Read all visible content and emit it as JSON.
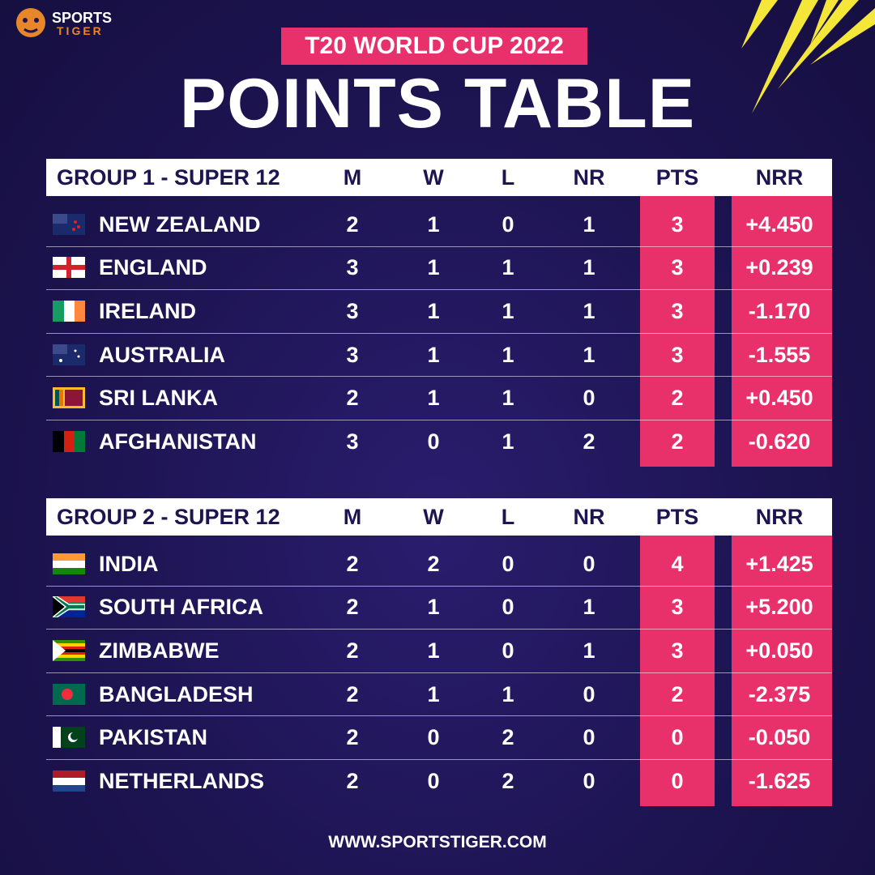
{
  "logo": {
    "top": "SPORTS",
    "bottom": "TIGER"
  },
  "badge": "T20 WORLD CUP 2022",
  "title": "POINTS TABLE",
  "groups": [
    {
      "header": [
        "GROUP 1 - SUPER 12",
        "M",
        "W",
        "L",
        "NR",
        "PTS",
        "NRR"
      ],
      "rows": [
        [
          "NEW ZEALAND",
          2,
          1,
          0,
          1,
          3,
          "+4.450"
        ],
        [
          "ENGLAND",
          3,
          1,
          1,
          1,
          3,
          "+0.239"
        ],
        [
          "IRELAND",
          3,
          1,
          1,
          1,
          3,
          "-1.170"
        ],
        [
          "AUSTRALIA",
          3,
          1,
          1,
          1,
          3,
          "-1.555"
        ],
        [
          "SRI LANKA",
          2,
          1,
          1,
          0,
          2,
          "+0.450"
        ],
        [
          "AFGHANISTAN",
          3,
          0,
          1,
          2,
          2,
          "-0.620"
        ]
      ]
    },
    {
      "header": [
        "GROUP 2 - SUPER 12",
        "M",
        "W",
        "L",
        "NR",
        "PTS",
        "NRR"
      ],
      "rows": [
        [
          "INDIA",
          2,
          2,
          0,
          0,
          4,
          "+1.425"
        ],
        [
          "SOUTH AFRICA",
          2,
          1,
          0,
          1,
          3,
          "+5.200"
        ],
        [
          "ZIMBABWE",
          2,
          1,
          0,
          1,
          3,
          "+0.050"
        ],
        [
          "BANGLADESH",
          2,
          1,
          1,
          0,
          2,
          "-2.375"
        ],
        [
          "PAKISTAN",
          2,
          0,
          2,
          0,
          0,
          "-0.050"
        ],
        [
          "NETHERLANDS",
          2,
          0,
          2,
          0,
          0,
          "-1.625"
        ]
      ]
    }
  ],
  "footer": "WWW.SPORTSTIGER.COM"
}
